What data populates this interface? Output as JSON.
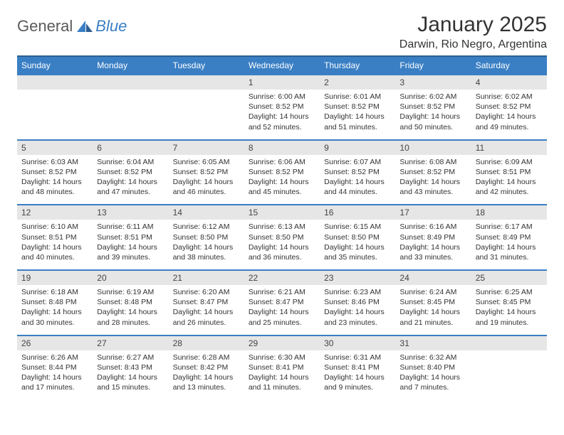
{
  "logo": {
    "text1": "General",
    "text2": "Blue",
    "color1": "#6a6a6a",
    "color2": "#3a7fc4"
  },
  "title": "January 2025",
  "location": "Darwin, Rio Negro, Argentina",
  "style": {
    "header_bg": "#3a7fc4",
    "header_text": "#ffffff",
    "daynum_bg": "#e6e6e6",
    "row_border": "#3a7fc4",
    "page_bg": "#ffffff",
    "body_text": "#333333"
  },
  "days_of_week": [
    "Sunday",
    "Monday",
    "Tuesday",
    "Wednesday",
    "Thursday",
    "Friday",
    "Saturday"
  ],
  "weeks": [
    [
      null,
      null,
      null,
      {
        "n": "1",
        "sr": "6:00 AM",
        "ss": "8:52 PM",
        "dl": "14 hours and 52 minutes."
      },
      {
        "n": "2",
        "sr": "6:01 AM",
        "ss": "8:52 PM",
        "dl": "14 hours and 51 minutes."
      },
      {
        "n": "3",
        "sr": "6:02 AM",
        "ss": "8:52 PM",
        "dl": "14 hours and 50 minutes."
      },
      {
        "n": "4",
        "sr": "6:02 AM",
        "ss": "8:52 PM",
        "dl": "14 hours and 49 minutes."
      }
    ],
    [
      {
        "n": "5",
        "sr": "6:03 AM",
        "ss": "8:52 PM",
        "dl": "14 hours and 48 minutes."
      },
      {
        "n": "6",
        "sr": "6:04 AM",
        "ss": "8:52 PM",
        "dl": "14 hours and 47 minutes."
      },
      {
        "n": "7",
        "sr": "6:05 AM",
        "ss": "8:52 PM",
        "dl": "14 hours and 46 minutes."
      },
      {
        "n": "8",
        "sr": "6:06 AM",
        "ss": "8:52 PM",
        "dl": "14 hours and 45 minutes."
      },
      {
        "n": "9",
        "sr": "6:07 AM",
        "ss": "8:52 PM",
        "dl": "14 hours and 44 minutes."
      },
      {
        "n": "10",
        "sr": "6:08 AM",
        "ss": "8:52 PM",
        "dl": "14 hours and 43 minutes."
      },
      {
        "n": "11",
        "sr": "6:09 AM",
        "ss": "8:51 PM",
        "dl": "14 hours and 42 minutes."
      }
    ],
    [
      {
        "n": "12",
        "sr": "6:10 AM",
        "ss": "8:51 PM",
        "dl": "14 hours and 40 minutes."
      },
      {
        "n": "13",
        "sr": "6:11 AM",
        "ss": "8:51 PM",
        "dl": "14 hours and 39 minutes."
      },
      {
        "n": "14",
        "sr": "6:12 AM",
        "ss": "8:50 PM",
        "dl": "14 hours and 38 minutes."
      },
      {
        "n": "15",
        "sr": "6:13 AM",
        "ss": "8:50 PM",
        "dl": "14 hours and 36 minutes."
      },
      {
        "n": "16",
        "sr": "6:15 AM",
        "ss": "8:50 PM",
        "dl": "14 hours and 35 minutes."
      },
      {
        "n": "17",
        "sr": "6:16 AM",
        "ss": "8:49 PM",
        "dl": "14 hours and 33 minutes."
      },
      {
        "n": "18",
        "sr": "6:17 AM",
        "ss": "8:49 PM",
        "dl": "14 hours and 31 minutes."
      }
    ],
    [
      {
        "n": "19",
        "sr": "6:18 AM",
        "ss": "8:48 PM",
        "dl": "14 hours and 30 minutes."
      },
      {
        "n": "20",
        "sr": "6:19 AM",
        "ss": "8:48 PM",
        "dl": "14 hours and 28 minutes."
      },
      {
        "n": "21",
        "sr": "6:20 AM",
        "ss": "8:47 PM",
        "dl": "14 hours and 26 minutes."
      },
      {
        "n": "22",
        "sr": "6:21 AM",
        "ss": "8:47 PM",
        "dl": "14 hours and 25 minutes."
      },
      {
        "n": "23",
        "sr": "6:23 AM",
        "ss": "8:46 PM",
        "dl": "14 hours and 23 minutes."
      },
      {
        "n": "24",
        "sr": "6:24 AM",
        "ss": "8:45 PM",
        "dl": "14 hours and 21 minutes."
      },
      {
        "n": "25",
        "sr": "6:25 AM",
        "ss": "8:45 PM",
        "dl": "14 hours and 19 minutes."
      }
    ],
    [
      {
        "n": "26",
        "sr": "6:26 AM",
        "ss": "8:44 PM",
        "dl": "14 hours and 17 minutes."
      },
      {
        "n": "27",
        "sr": "6:27 AM",
        "ss": "8:43 PM",
        "dl": "14 hours and 15 minutes."
      },
      {
        "n": "28",
        "sr": "6:28 AM",
        "ss": "8:42 PM",
        "dl": "14 hours and 13 minutes."
      },
      {
        "n": "29",
        "sr": "6:30 AM",
        "ss": "8:41 PM",
        "dl": "14 hours and 11 minutes."
      },
      {
        "n": "30",
        "sr": "6:31 AM",
        "ss": "8:41 PM",
        "dl": "14 hours and 9 minutes."
      },
      {
        "n": "31",
        "sr": "6:32 AM",
        "ss": "8:40 PM",
        "dl": "14 hours and 7 minutes."
      },
      null
    ]
  ],
  "labels": {
    "sunrise": "Sunrise:",
    "sunset": "Sunset:",
    "daylight": "Daylight:"
  }
}
